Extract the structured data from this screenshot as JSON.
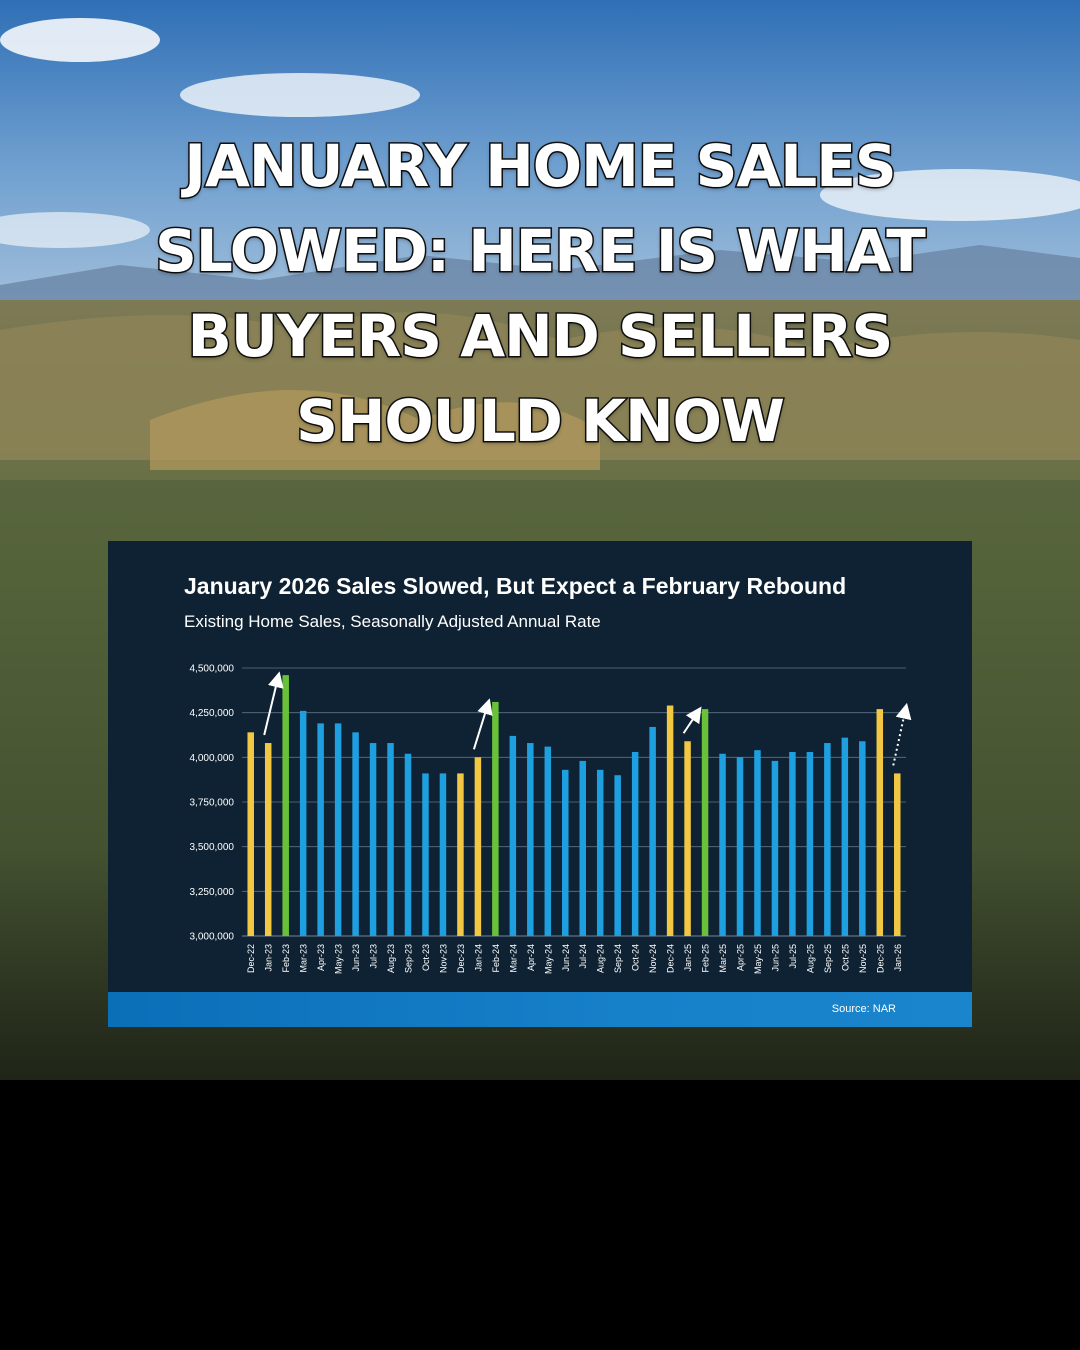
{
  "headline": {
    "lines": [
      "JANUARY HOME SALES",
      "SLOWED: HERE IS WHAT",
      "BUYERS AND SELLERS",
      "SHOULD KNOW"
    ]
  },
  "colors": {
    "card_bg": "#0f2233",
    "bar_blue": "#1ea0e0",
    "bar_yellow": "#f2c744",
    "bar_green": "#69c13a",
    "footer_blue": "#1680c9"
  },
  "chart_data": {
    "type": "bar",
    "title": "January 2026 Sales Slowed, But Expect a February Rebound",
    "subtitle": "Existing Home Sales, Seasonally Adjusted Annual Rate",
    "source": "Source: NAR",
    "ylim": [
      3000000,
      4500000
    ],
    "yticks": [
      "3,000,000",
      "3,250,000",
      "3,500,000",
      "3,750,000",
      "4,000,000",
      "4,250,000",
      "4,500,000"
    ],
    "grid": true,
    "categories": [
      "Dec-22",
      "Jan-23",
      "Feb-23",
      "Mar-23",
      "Apr-23",
      "May-23",
      "Jun-23",
      "Jul-23",
      "Aug-23",
      "Sep-23",
      "Oct-23",
      "Nov-23",
      "Dec-23",
      "Jan-24",
      "Feb-24",
      "Mar-24",
      "Apr-24",
      "May-24",
      "Jun-24",
      "Jul-24",
      "Aug-24",
      "Sep-24",
      "Oct-24",
      "Nov-24",
      "Dec-24",
      "Jan-25",
      "Feb-25",
      "Mar-25",
      "Apr-25",
      "May-25",
      "Jun-25",
      "Jul-25",
      "Aug-25",
      "Sep-25",
      "Oct-25",
      "Nov-25",
      "Dec-25",
      "Jan-26"
    ],
    "values": [
      4140000,
      4080000,
      4460000,
      4260000,
      4190000,
      4190000,
      4140000,
      4080000,
      4080000,
      4020000,
      3910000,
      3910000,
      3910000,
      4000000,
      4310000,
      4120000,
      4080000,
      4060000,
      3930000,
      3980000,
      3930000,
      3900000,
      4030000,
      4170000,
      4290000,
      4090000,
      4270000,
      4020000,
      4000000,
      4040000,
      3980000,
      4030000,
      4030000,
      4080000,
      4110000,
      4090000,
      4270000,
      3910000
    ],
    "bar_colors": [
      "yellow",
      "yellow",
      "green",
      "blue",
      "blue",
      "blue",
      "blue",
      "blue",
      "blue",
      "blue",
      "blue",
      "blue",
      "yellow",
      "yellow",
      "green",
      "blue",
      "blue",
      "blue",
      "blue",
      "blue",
      "blue",
      "blue",
      "blue",
      "blue",
      "yellow",
      "yellow",
      "green",
      "blue",
      "blue",
      "blue",
      "blue",
      "blue",
      "blue",
      "blue",
      "blue",
      "blue",
      "yellow",
      "yellow"
    ],
    "annotations": [
      {
        "type": "arrow",
        "from": "Jan-23",
        "to": "Feb-23",
        "style": "solid"
      },
      {
        "type": "arrow",
        "from": "Jan-24",
        "to": "Feb-24",
        "style": "solid"
      },
      {
        "type": "arrow",
        "from": "Jan-25",
        "to": "Feb-25",
        "style": "solid"
      },
      {
        "type": "arrow",
        "from": "Jan-26",
        "to": "Feb-26",
        "style": "dotted"
      }
    ]
  }
}
